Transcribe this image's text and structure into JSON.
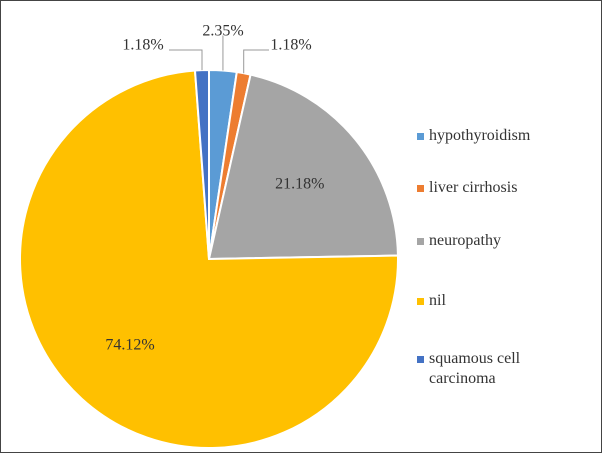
{
  "chart_data": {
    "type": "pie",
    "categories": [
      "hypothyroidism",
      "liver cirrhosis",
      "neuropathy",
      "nil",
      "squamous cell carcinoma"
    ],
    "values": [
      2.35,
      1.18,
      21.18,
      74.12,
      1.18
    ],
    "value_labels": [
      "2.35%",
      "1.18%",
      "21.18%",
      "74.12%",
      "1.18%"
    ],
    "colors": [
      "#5B9BD5",
      "#ED7D31",
      "#A5A5A5",
      "#FFC000",
      "#4472C4"
    ]
  }
}
